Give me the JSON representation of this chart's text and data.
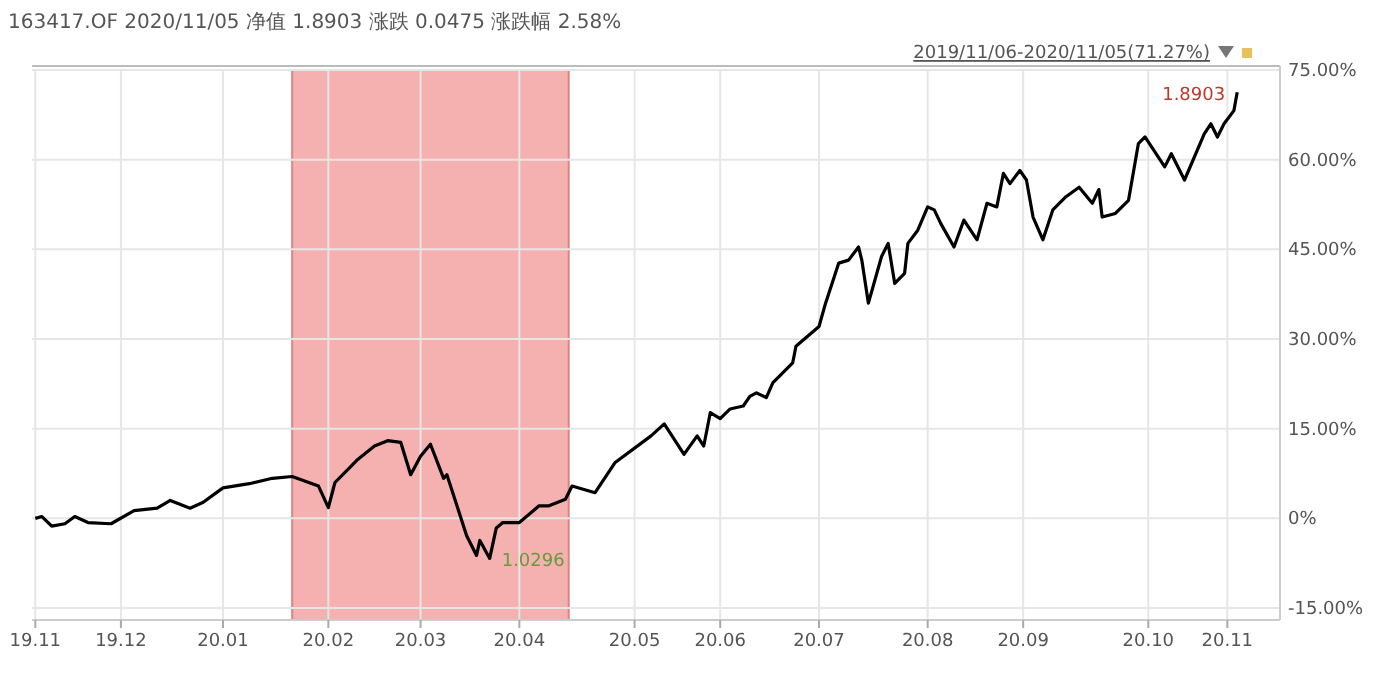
{
  "chart_data": {
    "type": "line",
    "title": "163417.OF  2020/11/05  净值 1.8903  涨跌 0.0475  涨跌幅 2.58%",
    "subtitle": "2019/11/06-2020/11/05(71.27%)",
    "xlim": [
      "2019-11-05",
      "2020-11-18"
    ],
    "xticks": [
      {
        "value": "2019-11-06",
        "label": "19.11"
      },
      {
        "value": "2019-12-02",
        "label": "19.12"
      },
      {
        "value": "2020-01-02",
        "label": "20.01"
      },
      {
        "value": "2020-02-03",
        "label": "20.02"
      },
      {
        "value": "2020-03-02",
        "label": "20.03"
      },
      {
        "value": "2020-04-01",
        "label": "20.04"
      },
      {
        "value": "2020-05-06",
        "label": "20.05"
      },
      {
        "value": "2020-06-01",
        "label": "20.06"
      },
      {
        "value": "2020-07-01",
        "label": "20.07"
      },
      {
        "value": "2020-08-03",
        "label": "20.08"
      },
      {
        "value": "2020-09-01",
        "label": "20.09"
      },
      {
        "value": "2020-10-09",
        "label": "20.10"
      },
      {
        "value": "2020-11-02",
        "label": "20.11"
      }
    ],
    "ylim": [
      -17,
      75
    ],
    "yticks": [
      {
        "value": -15,
        "label": "-15.00%"
      },
      {
        "value": 0,
        "label": "0%"
      },
      {
        "value": 15,
        "label": "15.00%"
      },
      {
        "value": 30,
        "label": "30.00%"
      },
      {
        "value": 45,
        "label": "45.00%"
      },
      {
        "value": 60,
        "label": "60.00%"
      },
      {
        "value": 75,
        "label": "75.00%"
      }
    ],
    "grid": true,
    "marker": "none",
    "line_style": "solid",
    "x": [
      "2019-11-06",
      "2019-11-08",
      "2019-11-11",
      "2019-11-15",
      "2019-11-18",
      "2019-11-22",
      "2019-11-29",
      "2019-12-06",
      "2019-12-13",
      "2019-12-17",
      "2019-12-23",
      "2019-12-27",
      "2020-01-02",
      "2020-01-10",
      "2020-01-17",
      "2020-01-23",
      "2020-01-31",
      "2020-02-03",
      "2020-02-05",
      "2020-02-10",
      "2020-02-12",
      "2020-02-17",
      "2020-02-21",
      "2020-02-25",
      "2020-02-28",
      "2020-03-02",
      "2020-03-05",
      "2020-03-09",
      "2020-03-10",
      "2020-03-16",
      "2020-03-19",
      "2020-03-20",
      "2020-03-23",
      "2020-03-25",
      "2020-03-27",
      "2020-04-01",
      "2020-04-07",
      "2020-04-10",
      "2020-04-15",
      "2020-04-17",
      "2020-04-24",
      "2020-04-30",
      "2020-05-11",
      "2020-05-15",
      "2020-05-21",
      "2020-05-25",
      "2020-05-27",
      "2020-05-29",
      "2020-06-01",
      "2020-06-04",
      "2020-06-08",
      "2020-06-10",
      "2020-06-12",
      "2020-06-15",
      "2020-06-17",
      "2020-06-19",
      "2020-06-23",
      "2020-06-24",
      "2020-07-01",
      "2020-07-03",
      "2020-07-07",
      "2020-07-10",
      "2020-07-13",
      "2020-07-14",
      "2020-07-16",
      "2020-07-20",
      "2020-07-22",
      "2020-07-24",
      "2020-07-27",
      "2020-07-28",
      "2020-07-31",
      "2020-08-03",
      "2020-08-05",
      "2020-08-07",
      "2020-08-11",
      "2020-08-14",
      "2020-08-18",
      "2020-08-21",
      "2020-08-24",
      "2020-08-26",
      "2020-08-28",
      "2020-08-31",
      "2020-09-02",
      "2020-09-04",
      "2020-09-07",
      "2020-09-10",
      "2020-09-14",
      "2020-09-18",
      "2020-09-22",
      "2020-09-24",
      "2020-09-25",
      "2020-09-29",
      "2020-10-03",
      "2020-10-06",
      "2020-10-08",
      "2020-10-14",
      "2020-10-16",
      "2020-10-20",
      "2020-10-26",
      "2020-10-28",
      "2020-10-30",
      "2020-11-01",
      "2020-11-04",
      "2020-11-05"
    ],
    "series": [
      {
        "color": "#000000",
        "values": [
          0,
          0.3,
          -1.3,
          -0.9,
          0.3,
          -0.7,
          -0.9,
          1.3,
          1.7,
          3,
          1.7,
          2.7,
          5.1,
          5.8,
          6.7,
          7,
          5.4,
          1.8,
          6,
          8.8,
          9.9,
          12.1,
          13,
          12.7,
          7.3,
          10.4,
          12.4,
          6.7,
          7.3,
          -2.9,
          -6.2,
          -3.7,
          -6.7,
          -1.6,
          -0.7,
          -0.7,
          2.1,
          2.1,
          3.2,
          5.4,
          4.3,
          9.3,
          13.8,
          15.8,
          10.7,
          13.8,
          12.1,
          17.7,
          16.7,
          18.3,
          18.8,
          20.4,
          21,
          20.2,
          22.7,
          23.8,
          26,
          28.8,
          32.1,
          36,
          42.7,
          43.2,
          45.4,
          43.2,
          36,
          43.8,
          46,
          39.3,
          41,
          46,
          48.2,
          52.1,
          51.6,
          49.3,
          45.4,
          49.9,
          46.6,
          52.7,
          52.1,
          57.7,
          56,
          58.2,
          56.6,
          50.4,
          46.6,
          51.6,
          53.8,
          55.4,
          52.7,
          55,
          50.4,
          51,
          53.2,
          62.7,
          63.8,
          58.8,
          61,
          56.6,
          64.3,
          66,
          63.8,
          66,
          68.2,
          71.27
        ]
      }
    ],
    "bands": [
      {
        "axis": "x",
        "from": "2020-01-23",
        "to": "2020-04-16",
        "color": "#f4a3a3"
      }
    ],
    "annotations": [
      {
        "text": "1.0296",
        "x": "2020-03-23",
        "y": -6.7
      },
      {
        "text": "1.8903",
        "x": "2020-11-05",
        "y": 71.27
      }
    ]
  }
}
